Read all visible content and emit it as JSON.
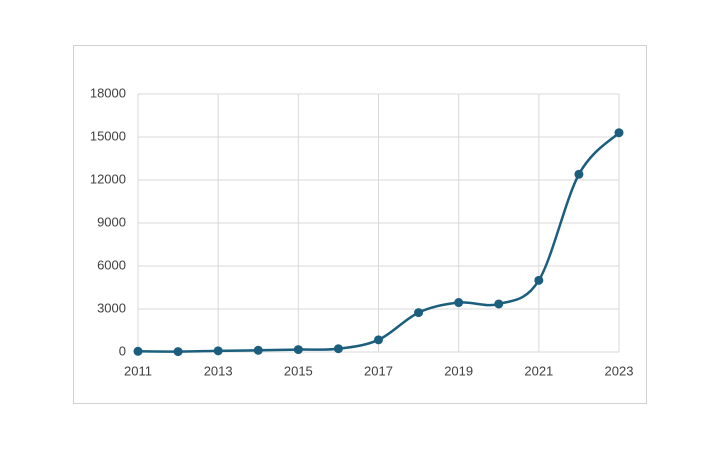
{
  "chart_data": {
    "type": "line",
    "x": [
      2011,
      2012,
      2013,
      2014,
      2015,
      2016,
      2017,
      2018,
      2019,
      2020,
      2021,
      2022,
      2023
    ],
    "series": [
      {
        "color": "#1b5e7e",
        "values": [
          50,
          30,
          80,
          120,
          170,
          230,
          850,
          2750,
          3450,
          3350,
          5000,
          12400,
          15300
        ]
      }
    ],
    "xlim": [
      2011,
      2023
    ],
    "xticks": [
      2011,
      2013,
      2015,
      2017,
      2019,
      2021,
      2023
    ],
    "ylim": [
      0,
      18000
    ],
    "yticks": [
      0,
      3000,
      6000,
      9000,
      12000,
      15000,
      18000
    ],
    "grid": true,
    "smooth": true,
    "markers": true
  }
}
